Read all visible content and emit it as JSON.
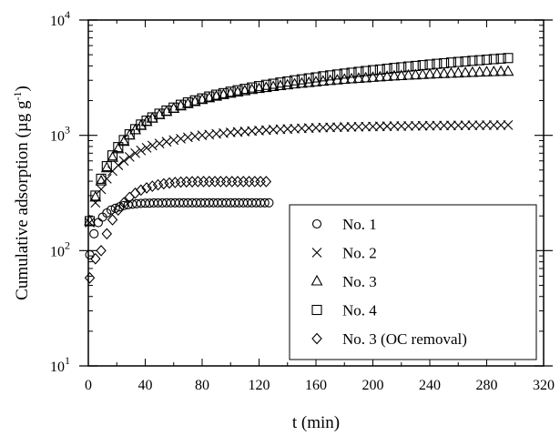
{
  "chart_data": {
    "type": "scatter",
    "title": "",
    "xlabel": "t (min)",
    "ylabel_parts": [
      "Cumulative adsorption (µg g",
      "-1",
      ")"
    ],
    "xlim": [
      0,
      320
    ],
    "ylim": [
      10,
      10000
    ],
    "yscale": "log",
    "xticks": [
      0,
      40,
      80,
      120,
      160,
      200,
      240,
      280,
      320
    ],
    "yticks": [
      {
        "value": 10,
        "base": "10",
        "exp": "1"
      },
      {
        "value": 100,
        "base": "10",
        "exp": "2"
      },
      {
        "value": 1000,
        "base": "10",
        "exp": "3"
      },
      {
        "value": 10000,
        "base": "10",
        "exp": "4"
      }
    ],
    "grid": false,
    "legend_position": "lower-right",
    "series": [
      {
        "name": "No. 1",
        "marker": "circle",
        "x": [
          1,
          4,
          7,
          10,
          13,
          16,
          19,
          22,
          25,
          28,
          31,
          34,
          37,
          40,
          43,
          46,
          49,
          52,
          55,
          58,
          61,
          64,
          67,
          70,
          73,
          76,
          79,
          82,
          85,
          88,
          91,
          94,
          97,
          100,
          103,
          106,
          109,
          112,
          115,
          118,
          121,
          124,
          127
        ],
        "y": [
          92,
          140,
          175,
          195,
          212,
          225,
          233,
          240,
          246,
          250,
          253,
          255,
          257,
          258,
          258,
          259,
          259,
          259,
          260,
          260,
          260,
          260,
          260,
          260,
          260,
          260,
          260,
          260,
          260,
          260,
          260,
          260,
          260,
          260,
          260,
          260,
          260,
          260,
          260,
          260,
          260,
          260,
          260
        ]
      },
      {
        "name": "No. 2",
        "marker": "cross",
        "x": [
          1,
          5,
          9,
          13,
          17,
          21,
          25,
          29,
          33,
          37,
          41,
          45,
          50,
          55,
          60,
          65,
          70,
          75,
          80,
          85,
          90,
          95,
          100,
          105,
          110,
          115,
          120,
          125,
          130,
          135,
          140,
          145,
          150,
          155,
          160,
          165,
          170,
          175,
          180,
          185,
          190,
          195,
          200,
          205,
          210,
          215,
          220,
          225,
          230,
          235,
          240,
          245,
          250,
          255,
          260,
          265,
          270,
          275,
          280,
          285,
          290,
          295
        ],
        "y": [
          175,
          260,
          340,
          420,
          490,
          550,
          600,
          650,
          700,
          740,
          780,
          815,
          850,
          880,
          910,
          935,
          960,
          980,
          1000,
          1015,
          1030,
          1045,
          1060,
          1070,
          1080,
          1090,
          1100,
          1110,
          1120,
          1128,
          1135,
          1142,
          1150,
          1156,
          1162,
          1168,
          1172,
          1176,
          1180,
          1184,
          1187,
          1190,
          1193,
          1196,
          1199,
          1202,
          1204,
          1206,
          1208,
          1210,
          1212,
          1214,
          1216,
          1218,
          1220,
          1221,
          1222,
          1223,
          1224,
          1225,
          1226,
          1227
        ]
      },
      {
        "name": "No. 3",
        "marker": "triangle",
        "x": [
          1,
          5,
          9,
          13,
          17,
          21,
          25,
          29,
          33,
          37,
          41,
          45,
          50,
          55,
          60,
          65,
          70,
          75,
          80,
          85,
          90,
          95,
          100,
          105,
          110,
          115,
          120,
          125,
          130,
          135,
          140,
          145,
          150,
          155,
          160,
          165,
          170,
          175,
          180,
          185,
          190,
          195,
          200,
          205,
          210,
          215,
          220,
          225,
          230,
          235,
          240,
          245,
          250,
          255,
          260,
          265,
          270,
          275,
          280,
          285,
          290,
          295
        ],
        "y": [
          180,
          290,
          400,
          520,
          640,
          760,
          880,
          1000,
          1110,
          1210,
          1310,
          1400,
          1500,
          1600,
          1700,
          1790,
          1870,
          1950,
          2030,
          2100,
          2170,
          2240,
          2300,
          2360,
          2420,
          2480,
          2530,
          2580,
          2630,
          2680,
          2720,
          2770,
          2810,
          2850,
          2890,
          2930,
          2970,
          3000,
          3040,
          3070,
          3100,
          3130,
          3160,
          3190,
          3220,
          3250,
          3270,
          3300,
          3320,
          3350,
          3370,
          3390,
          3410,
          3430,
          3450,
          3470,
          3490,
          3510,
          3530,
          3540,
          3560,
          3570
        ]
      },
      {
        "name": "No. 4",
        "marker": "square",
        "x": [
          1,
          5,
          9,
          13,
          17,
          21,
          25,
          29,
          33,
          37,
          41,
          45,
          50,
          55,
          60,
          65,
          70,
          75,
          80,
          85,
          90,
          95,
          100,
          105,
          110,
          115,
          120,
          125,
          130,
          135,
          140,
          145,
          150,
          155,
          160,
          165,
          170,
          175,
          180,
          185,
          190,
          195,
          200,
          205,
          210,
          215,
          220,
          225,
          230,
          235,
          240,
          245,
          250,
          255,
          260,
          265,
          270,
          275,
          280,
          285,
          290,
          295
        ],
        "y": [
          180,
          300,
          420,
          540,
          670,
          790,
          910,
          1020,
          1130,
          1240,
          1340,
          1430,
          1540,
          1640,
          1740,
          1840,
          1930,
          2010,
          2090,
          2170,
          2250,
          2320,
          2390,
          2460,
          2530,
          2600,
          2670,
          2740,
          2800,
          2870,
          2930,
          3000,
          3060,
          3120,
          3180,
          3250,
          3310,
          3370,
          3430,
          3490,
          3550,
          3610,
          3670,
          3720,
          3780,
          3840,
          3890,
          3950,
          4000,
          4060,
          4110,
          4170,
          4220,
          4280,
          4330,
          4380,
          4430,
          4480,
          4530,
          4580,
          4630,
          4680
        ]
      },
      {
        "name": "No. 3 (OC removal)",
        "marker": "diamond",
        "x": [
          1,
          5,
          9,
          13,
          17,
          21,
          25,
          29,
          33,
          37,
          41,
          45,
          49,
          53,
          57,
          61,
          65,
          69,
          73,
          77,
          81,
          85,
          89,
          93,
          97,
          101,
          105,
          109,
          113,
          117,
          121,
          125
        ],
        "y": [
          58,
          85,
          100,
          140,
          185,
          225,
          260,
          290,
          315,
          335,
          350,
          362,
          372,
          380,
          386,
          390,
          393,
          395,
          396,
          397,
          397,
          397,
          397,
          397,
          397,
          397,
          397,
          397,
          397,
          397,
          397,
          397
        ]
      }
    ]
  }
}
